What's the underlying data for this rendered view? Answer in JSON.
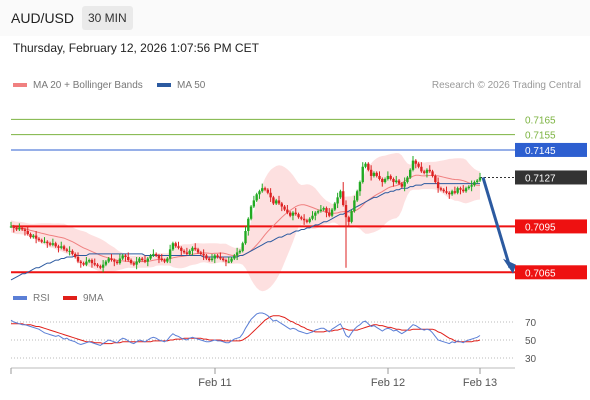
{
  "header": {
    "symbol": "AUD/USD",
    "timeframe": "30 MIN"
  },
  "timestamp": "Thursday, February 12, 2026 1:07:56 PM CET",
  "main_legend": [
    {
      "label": "MA 20 + Bollinger Bands",
      "color": "#f08080"
    },
    {
      "label": "MA 50",
      "color": "#2c5aa0"
    }
  ],
  "credit": "Research © 2026 Trading Central",
  "rsi_legend": [
    {
      "label": "RSI",
      "color": "#5b7fd6"
    },
    {
      "label": "9MA",
      "color": "#e0201a"
    }
  ],
  "colors": {
    "up": "#22aa22",
    "down": "#dd2222",
    "resistance": "#2d5fd0",
    "support": "#ee1111",
    "target_green": "#7cb341",
    "current": "#333333",
    "arrow": "#2c5aa0"
  },
  "chart_data": [
    {
      "type": "candlestick",
      "title": "AUD/USD",
      "x_ticks": [
        "Feb 11",
        "Feb 12",
        "Feb 13"
      ],
      "y_range": [
        7058,
        7177
      ],
      "y_unit": "price x 10^-4",
      "levels": [
        {
          "label": "0.7165",
          "value": 0.7165,
          "kind": "target",
          "color": "#7cb341"
        },
        {
          "label": "0.7155",
          "value": 0.7155,
          "kind": "target",
          "color": "#7cb341"
        },
        {
          "label": "0.7145",
          "value": 0.7145,
          "kind": "resistance",
          "color": "#2d5fd0"
        },
        {
          "label": "0.7127",
          "value": 0.7127,
          "kind": "current",
          "color": "#333333"
        },
        {
          "label": "0.7095",
          "value": 0.7095,
          "kind": "support",
          "color": "#ee1111"
        },
        {
          "label": "0.7065",
          "value": 0.7065,
          "kind": "support",
          "color": "#ee1111"
        }
      ],
      "close": [
        7095,
        7094,
        7093,
        7094,
        7093,
        7092,
        7090,
        7088,
        7089,
        7087,
        7086,
        7085,
        7085,
        7084,
        7083,
        7084,
        7082,
        7081,
        7082,
        7080,
        7079,
        7079,
        7077,
        7075,
        7072,
        7071,
        7070,
        7072,
        7073,
        7071,
        7070,
        7069,
        7068,
        7070,
        7072,
        7074,
        7073,
        7072,
        7071,
        7074,
        7076,
        7075,
        7073,
        7071,
        7070,
        7072,
        7074,
        7073,
        7072,
        7074,
        7076,
        7077,
        7076,
        7074,
        7073,
        7072,
        7074,
        7080,
        7084,
        7082,
        7081,
        7079,
        7078,
        7077,
        7079,
        7081,
        7080,
        7078,
        7077,
        7076,
        7074,
        7073,
        7074,
        7076,
        7075,
        7074,
        7073,
        7072,
        7072,
        7074,
        7076,
        7078,
        7079,
        7084,
        7092,
        7100,
        7108,
        7112,
        7116,
        7118,
        7120,
        7119,
        7117,
        7114,
        7110,
        7112,
        7110,
        7108,
        7106,
        7104,
        7102,
        7104,
        7103,
        7101,
        7100,
        7099,
        7098,
        7100,
        7102,
        7104,
        7105,
        7106,
        7107,
        7104,
        7102,
        7106,
        7110,
        7114,
        7118,
        7109,
        7101,
        7098,
        7105,
        7112,
        7118,
        7124,
        7134,
        7136,
        7132,
        7128,
        7130,
        7128,
        7126,
        7124,
        7126,
        7128,
        7126,
        7124,
        7125,
        7123,
        7121,
        7124,
        7127,
        7132,
        7138,
        7136,
        7134,
        7131,
        7130,
        7132,
        7131,
        7128,
        7124,
        7120,
        7119,
        7118,
        7117,
        7116,
        7118,
        7117,
        7120,
        7119,
        7118,
        7120,
        7121,
        7122,
        7124,
        7125,
        7127
      ],
      "ma50": [
        7060,
        7061,
        7062,
        7063,
        7064,
        7064,
        7065,
        7066,
        7067,
        7068,
        7068,
        7069,
        7070,
        7071,
        7071,
        7072,
        7073,
        7073,
        7074,
        7074,
        7075,
        7075,
        7075,
        7076,
        7076,
        7076,
        7076,
        7076,
        7077,
        7077,
        7077,
        7077,
        7077,
        7077,
        7077,
        7077,
        7077,
        7077,
        7077,
        7077,
        7077,
        7077,
        7077,
        7077,
        7077,
        7077,
        7077,
        7077,
        7076,
        7076,
        7076,
        7076,
        7076,
        7076,
        7076,
        7076,
        7076,
        7076,
        7076,
        7076,
        7076,
        7076,
        7076,
        7076,
        7076,
        7076,
        7076,
        7076,
        7076,
        7075,
        7075,
        7075,
        7075,
        7075,
        7075,
        7075,
        7075,
        7075,
        7075,
        7075,
        7075,
        7075,
        7076,
        7076,
        7077,
        7078,
        7079,
        7080,
        7081,
        7082,
        7083,
        7084,
        7085,
        7085,
        7086,
        7087,
        7088,
        7088,
        7089,
        7090,
        7090,
        7091,
        7092,
        7092,
        7093,
        7093,
        7094,
        7094,
        7095,
        7096,
        7096,
        7097,
        7098,
        7098,
        7099,
        7100,
        7101,
        7102,
        7103,
        7103,
        7104,
        7105,
        7106,
        7107,
        7108,
        7109,
        7110,
        7111,
        7112,
        7113,
        7114,
        7114,
        7115,
        7116,
        7117,
        7117,
        7118,
        7118,
        7119,
        7119,
        7120,
        7120,
        7120,
        7121,
        7121,
        7122,
        7122,
        7122,
        7123,
        7123,
        7123,
        7123,
        7123,
        7123,
        7123,
        7123,
        7123,
        7123,
        7123,
        7123,
        7123,
        7123,
        7123,
        7123,
        7123,
        7123,
        7123,
        7123,
        7123
      ],
      "rsi": [
        72,
        70,
        69,
        68,
        67,
        67,
        66,
        65,
        64,
        63,
        62,
        60,
        58,
        57,
        56,
        55,
        54,
        55,
        53,
        51,
        52,
        50,
        49,
        48,
        46,
        45,
        46,
        47,
        48,
        47,
        46,
        45,
        44,
        46,
        48,
        50,
        49,
        48,
        47,
        50,
        52,
        51,
        49,
        47,
        46,
        48,
        50,
        49,
        48,
        50,
        52,
        53,
        52,
        50,
        49,
        48,
        50,
        54,
        57,
        55,
        54,
        52,
        51,
        50,
        52,
        53,
        52,
        51,
        50,
        49,
        48,
        48,
        49,
        50,
        49,
        49,
        48,
        47,
        47,
        49,
        51,
        52,
        53,
        57,
        63,
        68,
        73,
        76,
        79,
        80,
        80,
        79,
        77,
        74,
        71,
        72,
        70,
        68,
        66,
        64,
        62,
        63,
        62,
        60,
        59,
        58,
        57,
        58,
        59,
        61,
        62,
        63,
        63,
        61,
        59,
        62,
        64,
        66,
        68,
        62,
        55,
        53,
        58,
        62,
        65,
        67,
        70,
        71,
        68,
        65,
        66,
        64,
        62,
        60,
        62,
        63,
        62,
        60,
        61,
        59,
        57,
        59,
        61,
        64,
        67,
        66,
        64,
        62,
        61,
        62,
        61,
        58,
        54,
        50,
        49,
        48,
        47,
        46,
        48,
        47,
        49,
        48,
        47,
        49,
        50,
        51,
        52,
        53,
        55
      ],
      "rsi_ma9": [
        68,
        68,
        68,
        68,
        68,
        67,
        67,
        67,
        66,
        65,
        65,
        64,
        63,
        62,
        61,
        60,
        59,
        58,
        57,
        56,
        55,
        54,
        53,
        52,
        51,
        50,
        49,
        48,
        48,
        48,
        47,
        47,
        47,
        46,
        46,
        46,
        46,
        47,
        47,
        47,
        48,
        48,
        48,
        48,
        48,
        48,
        48,
        48,
        48,
        48,
        48,
        49,
        49,
        49,
        49,
        49,
        49,
        50,
        50,
        51,
        51,
        51,
        52,
        52,
        52,
        52,
        52,
        52,
        52,
        51,
        51,
        50,
        50,
        50,
        50,
        50,
        49,
        49,
        49,
        49,
        49,
        49,
        49,
        50,
        52,
        54,
        57,
        60,
        63,
        66,
        69,
        72,
        74,
        76,
        77,
        77,
        77,
        76,
        75,
        73,
        71,
        70,
        68,
        67,
        65,
        64,
        62,
        61,
        60,
        59,
        59,
        59,
        59,
        60,
        60,
        60,
        61,
        61,
        62,
        63,
        62,
        61,
        61,
        61,
        61,
        62,
        63,
        64,
        65,
        66,
        67,
        67,
        66,
        66,
        65,
        64,
        64,
        63,
        62,
        62,
        61,
        61,
        61,
        61,
        62,
        62,
        62,
        62,
        62,
        62,
        62,
        62,
        61,
        59,
        58,
        56,
        54,
        52,
        51,
        49,
        48,
        48,
        48,
        48,
        48,
        48,
        49,
        49,
        50
      ]
    }
  ]
}
